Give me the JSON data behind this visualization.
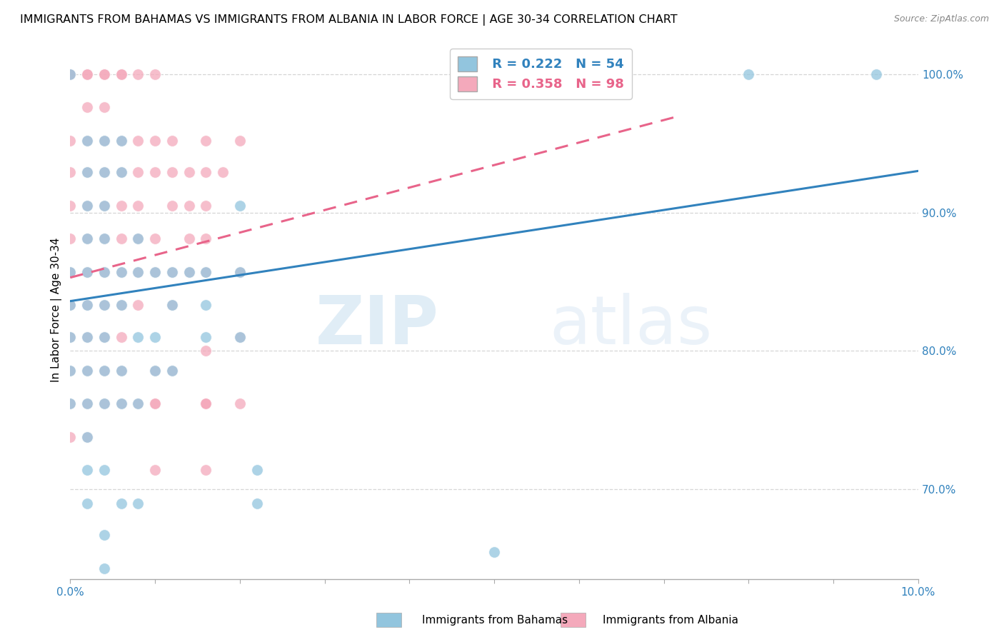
{
  "title": "IMMIGRANTS FROM BAHAMAS VS IMMIGRANTS FROM ALBANIA IN LABOR FORCE | AGE 30-34 CORRELATION CHART",
  "source": "Source: ZipAtlas.com",
  "ylabel": "In Labor Force | Age 30-34",
  "xmin": 0.0,
  "xmax": 0.1,
  "ymin": 0.635,
  "ymax": 1.025,
  "blue_R": "0.222",
  "blue_N": "54",
  "pink_R": "0.358",
  "pink_N": "98",
  "blue_color": "#92c5de",
  "pink_color": "#f4a9bb",
  "blue_line_color": "#3182bd",
  "pink_line_color": "#e8648a",
  "blue_scatter": [
    [
      0.0,
      0.857
    ],
    [
      0.0,
      0.833
    ],
    [
      0.0,
      0.81
    ],
    [
      0.0,
      0.786
    ],
    [
      0.0,
      0.762
    ],
    [
      0.002,
      0.952
    ],
    [
      0.002,
      0.929
    ],
    [
      0.002,
      0.905
    ],
    [
      0.002,
      0.881
    ],
    [
      0.002,
      0.857
    ],
    [
      0.002,
      0.833
    ],
    [
      0.002,
      0.81
    ],
    [
      0.002,
      0.786
    ],
    [
      0.002,
      0.762
    ],
    [
      0.002,
      0.738
    ],
    [
      0.002,
      0.714
    ],
    [
      0.002,
      0.69
    ],
    [
      0.004,
      0.952
    ],
    [
      0.004,
      0.929
    ],
    [
      0.004,
      0.905
    ],
    [
      0.004,
      0.881
    ],
    [
      0.004,
      0.857
    ],
    [
      0.004,
      0.833
    ],
    [
      0.004,
      0.81
    ],
    [
      0.004,
      0.786
    ],
    [
      0.004,
      0.762
    ],
    [
      0.004,
      0.714
    ],
    [
      0.006,
      0.952
    ],
    [
      0.006,
      0.929
    ],
    [
      0.006,
      0.857
    ],
    [
      0.006,
      0.833
    ],
    [
      0.006,
      0.786
    ],
    [
      0.006,
      0.762
    ],
    [
      0.006,
      0.69
    ],
    [
      0.008,
      0.881
    ],
    [
      0.008,
      0.857
    ],
    [
      0.008,
      0.81
    ],
    [
      0.008,
      0.762
    ],
    [
      0.008,
      0.69
    ],
    [
      0.01,
      0.857
    ],
    [
      0.01,
      0.81
    ],
    [
      0.01,
      0.786
    ],
    [
      0.012,
      0.857
    ],
    [
      0.012,
      0.833
    ],
    [
      0.012,
      0.786
    ],
    [
      0.014,
      0.857
    ],
    [
      0.016,
      0.857
    ],
    [
      0.016,
      0.833
    ],
    [
      0.016,
      0.81
    ],
    [
      0.02,
      0.905
    ],
    [
      0.02,
      0.857
    ],
    [
      0.02,
      0.81
    ],
    [
      0.004,
      0.667
    ],
    [
      0.004,
      0.643
    ],
    [
      0.022,
      0.714
    ],
    [
      0.055,
      1.0
    ],
    [
      0.0,
      1.0
    ],
    [
      0.08,
      1.0
    ],
    [
      0.095,
      1.0
    ],
    [
      0.022,
      0.69
    ],
    [
      0.05,
      0.655
    ]
  ],
  "pink_scatter": [
    [
      0.0,
      1.0
    ],
    [
      0.0,
      1.0
    ],
    [
      0.002,
      1.0
    ],
    [
      0.002,
      1.0
    ],
    [
      0.004,
      1.0
    ],
    [
      0.004,
      1.0
    ],
    [
      0.006,
      1.0
    ],
    [
      0.006,
      1.0
    ],
    [
      0.008,
      1.0
    ],
    [
      0.01,
      1.0
    ],
    [
      0.0,
      0.952
    ],
    [
      0.0,
      0.929
    ],
    [
      0.0,
      0.905
    ],
    [
      0.0,
      0.881
    ],
    [
      0.0,
      0.857
    ],
    [
      0.0,
      0.833
    ],
    [
      0.0,
      0.81
    ],
    [
      0.0,
      0.786
    ],
    [
      0.0,
      0.762
    ],
    [
      0.0,
      0.738
    ],
    [
      0.002,
      0.976
    ],
    [
      0.002,
      0.952
    ],
    [
      0.002,
      0.929
    ],
    [
      0.002,
      0.905
    ],
    [
      0.002,
      0.881
    ],
    [
      0.002,
      0.857
    ],
    [
      0.002,
      0.833
    ],
    [
      0.002,
      0.81
    ],
    [
      0.002,
      0.786
    ],
    [
      0.002,
      0.762
    ],
    [
      0.002,
      0.738
    ],
    [
      0.004,
      0.976
    ],
    [
      0.004,
      0.952
    ],
    [
      0.004,
      0.929
    ],
    [
      0.004,
      0.905
    ],
    [
      0.004,
      0.881
    ],
    [
      0.004,
      0.857
    ],
    [
      0.004,
      0.833
    ],
    [
      0.004,
      0.81
    ],
    [
      0.004,
      0.786
    ],
    [
      0.004,
      0.762
    ],
    [
      0.006,
      0.952
    ],
    [
      0.006,
      0.929
    ],
    [
      0.006,
      0.905
    ],
    [
      0.006,
      0.881
    ],
    [
      0.006,
      0.857
    ],
    [
      0.006,
      0.833
    ],
    [
      0.006,
      0.81
    ],
    [
      0.006,
      0.786
    ],
    [
      0.006,
      0.762
    ],
    [
      0.008,
      0.952
    ],
    [
      0.008,
      0.929
    ],
    [
      0.008,
      0.905
    ],
    [
      0.008,
      0.881
    ],
    [
      0.008,
      0.857
    ],
    [
      0.008,
      0.833
    ],
    [
      0.008,
      0.762
    ],
    [
      0.01,
      0.952
    ],
    [
      0.01,
      0.929
    ],
    [
      0.01,
      0.881
    ],
    [
      0.01,
      0.857
    ],
    [
      0.01,
      0.786
    ],
    [
      0.01,
      0.762
    ],
    [
      0.012,
      0.929
    ],
    [
      0.012,
      0.905
    ],
    [
      0.012,
      0.857
    ],
    [
      0.012,
      0.833
    ],
    [
      0.012,
      0.786
    ],
    [
      0.014,
      0.929
    ],
    [
      0.014,
      0.905
    ],
    [
      0.014,
      0.881
    ],
    [
      0.014,
      0.857
    ],
    [
      0.016,
      0.952
    ],
    [
      0.016,
      0.929
    ],
    [
      0.016,
      0.905
    ],
    [
      0.016,
      0.881
    ],
    [
      0.016,
      0.857
    ],
    [
      0.018,
      0.929
    ],
    [
      0.02,
      0.857
    ],
    [
      0.02,
      0.762
    ],
    [
      0.01,
      0.762
    ],
    [
      0.016,
      0.8
    ],
    [
      0.016,
      0.762
    ],
    [
      0.012,
      0.952
    ],
    [
      0.02,
      0.952
    ],
    [
      0.01,
      0.714
    ],
    [
      0.016,
      0.714
    ],
    [
      0.016,
      0.762
    ],
    [
      0.02,
      0.81
    ],
    [
      0.016,
      0.762
    ]
  ],
  "blue_trendline_x": [
    0.0,
    0.1
  ],
  "blue_trendline_y": [
    0.836,
    0.93
  ],
  "pink_trendline_x": [
    0.0,
    0.072
  ],
  "pink_trendline_y": [
    0.853,
    0.97
  ],
  "grid_color": "#cccccc",
  "watermark_zip": "ZIP",
  "watermark_atlas": "atlas",
  "legend_blue_label": "Immigrants from Bahamas",
  "legend_pink_label": "Immigrants from Albania",
  "ytick_vals": [
    0.7,
    0.8,
    0.9,
    1.0
  ],
  "ytick_labels": [
    "70.0%",
    "80.0%",
    "90.0%",
    "100.0%"
  ]
}
